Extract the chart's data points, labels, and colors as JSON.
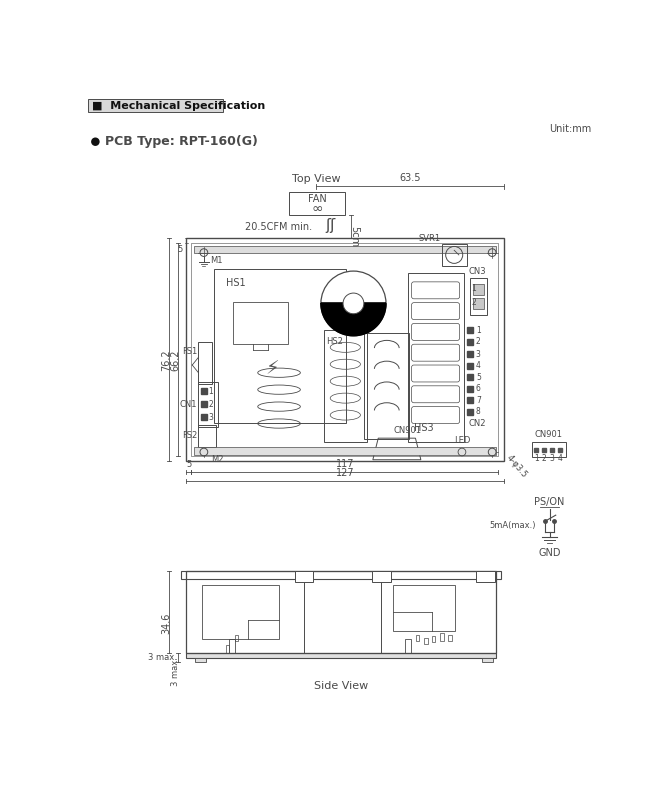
{
  "title": "Mechanical Specification",
  "unit_label": "Unit:mm",
  "bg_color": "#ffffff",
  "lc": "#4a4a4a",
  "top_view_label": "Top View",
  "side_view_label": "Side View",
  "dim_63_5": "63.5",
  "dim_20_5cfm": "20.5CFM min.",
  "dim_5cm": "5cm",
  "dim_76_2": "76.2",
  "dim_66_2": "66.2",
  "dim_5_left": "5",
  "dim_5_bot": "5",
  "dim_117": "117",
  "dim_127": "127",
  "dim_34_6": "34.6",
  "dim_3max": "3 max.",
  "dim_4_phi35": "4-φ3.5",
  "fan_label": "FAN",
  "svr1_label": "SVR1",
  "hs1_label": "HS1",
  "hs2_label": "HS2",
  "hs3_label": "HS3",
  "cn1_label": "CN1",
  "cn2_label": "CN2",
  "cn3_label": "CN3",
  "cn901_label": "CN901",
  "cn901_box_label": "CN901",
  "led_label": "LED",
  "m1_label": "M1",
  "m2_label": "M2",
  "fs1_label": "FS1",
  "fs2_label": "FS2",
  "pson_label": "PS/ON",
  "gnd_label": "GND",
  "5ma_label": "5mA(max.)"
}
